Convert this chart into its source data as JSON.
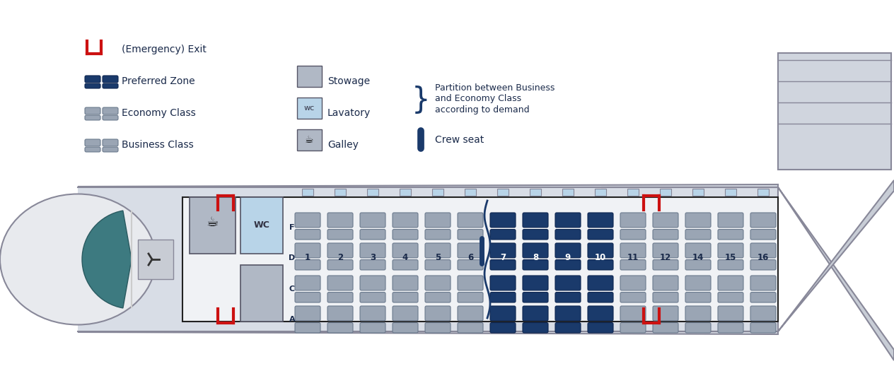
{
  "bg_color": "#ffffff",
  "fuselage_color": "#d8dde6",
  "fuselage_outline": "#888899",
  "cabin_bg": "#ffffff",
  "cabin_outline": "#222222",
  "seat_economy_color": "#9aa5b4",
  "seat_business_color": "#9aa5b4",
  "seat_preferred_color": "#1a3a6b",
  "seat_outline": "#6b7a8d",
  "galley_bg": "#b0b8c5",
  "wc_bg": "#b8d4e8",
  "stowage_bg": "#b0b8c5",
  "exit_color": "#cc1111",
  "text_color": "#1a2a4a",
  "row_numbers": [
    1,
    2,
    3,
    4,
    5,
    6,
    7,
    8,
    9,
    10,
    11,
    12,
    14,
    15,
    16
  ],
  "preferred_rows": [
    7,
    8,
    9,
    10
  ],
  "title_color": "#1a2a4a",
  "nose_teal": "#3d7a80",
  "wing_color": "#c8cdd6"
}
